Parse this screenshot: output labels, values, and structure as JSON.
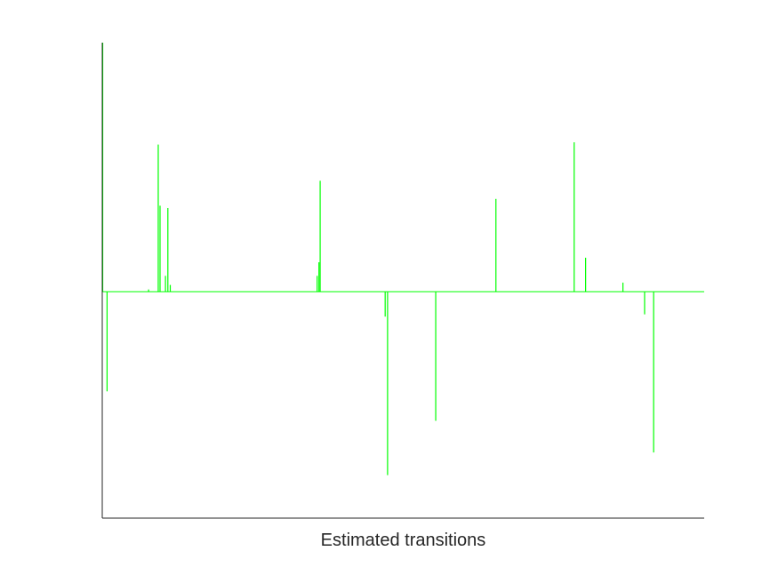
{
  "chart_data": {
    "type": "line",
    "title": "",
    "xlabel": "Estimated transitions",
    "ylabel": "",
    "xlim": [
      0,
      1000
    ],
    "ylim": [
      -1,
      1.1
    ],
    "grid": false,
    "legend": "none",
    "axes_box": "left-and-bottom",
    "series": [
      {
        "color": "#00ff00",
        "baseline": 0,
        "spikes": [
          {
            "x": 0,
            "y": 1.1
          },
          {
            "x": 8,
            "y": -0.44
          },
          {
            "x": 77,
            "y": 0.01
          },
          {
            "x": 93,
            "y": 0.65
          },
          {
            "x": 96,
            "y": 0.38
          },
          {
            "x": 105,
            "y": 0.07
          },
          {
            "x": 109,
            "y": 0.37
          },
          {
            "x": 113,
            "y": 0.03
          },
          {
            "x": 357,
            "y": 0.07
          },
          {
            "x": 360,
            "y": 0.13
          },
          {
            "x": 362,
            "y": 0.49
          },
          {
            "x": 470,
            "y": -0.11
          },
          {
            "x": 474,
            "y": -0.81
          },
          {
            "x": 554,
            "y": -0.57
          },
          {
            "x": 654,
            "y": 0.41
          },
          {
            "x": 784,
            "y": 0.66
          },
          {
            "x": 803,
            "y": 0.15
          },
          {
            "x": 865,
            "y": 0.04
          },
          {
            "x": 901,
            "y": -0.1
          },
          {
            "x": 916,
            "y": -0.71
          }
        ]
      }
    ]
  }
}
